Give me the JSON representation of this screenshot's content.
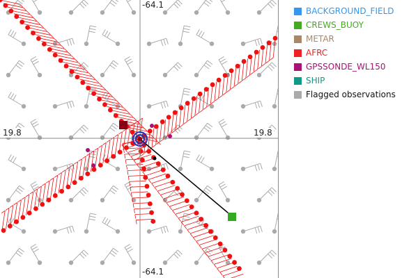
{
  "plot": {
    "axis_labels": {
      "top": "-64.1",
      "bottom": "-64.1",
      "left": "19.8",
      "right": "19.8"
    }
  },
  "legend": {
    "items": [
      {
        "label": "BACKGROUND_FIELD",
        "color": "#3399ee"
      },
      {
        "label": "CREWS_BUOY",
        "color": "#44aa22"
      },
      {
        "label": "METAR",
        "color": "#aa8866"
      },
      {
        "label": "AFRC",
        "color": "#ee2222"
      },
      {
        "label": "GPSSONDE_WL150",
        "color": "#aa1177"
      },
      {
        "label": "SHIP",
        "color": "#119988"
      },
      {
        "label": "Flagged observations",
        "color": "#aaaaaa",
        "text_color": "#111111"
      }
    ]
  },
  "colors": {
    "grid_marker": "#aaaaaa",
    "track": "#ee1111",
    "center_circle": "#2233bb",
    "vector": "#000000",
    "buoy": "#33aa22",
    "sonde": "#aa1177",
    "dark_marker": "#880011"
  }
}
